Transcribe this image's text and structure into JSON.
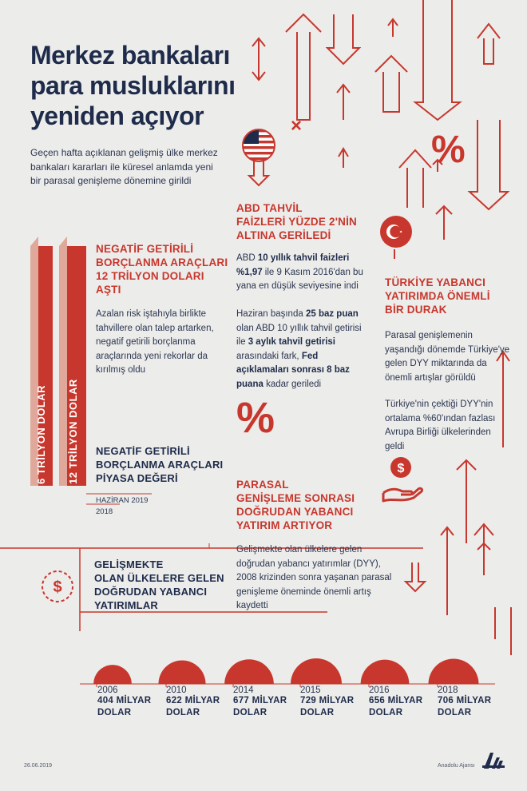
{
  "title": [
    "Merkez bankaları",
    "para musluklarını",
    "yeniden açıyor"
  ],
  "intro": "Geçen hafta açıklanan gelişmiş ülke merkez bankaları kararları ile küresel anlamda yeni bir parasal genişleme dönemine girildi",
  "negative_bonds": {
    "heading": [
      "NEGATİF GETİRİLİ",
      "BORÇLANMA ARAÇLARI",
      "12 TRİLYON DOLARI",
      "AŞTI"
    ],
    "body": "Azalan risk iştahıyla birlikte tahvillere olan talep artarken, negatif getirili borçlanma araçlarında yeni rekorlar da kırılmış oldu",
    "bar_2018_label": "6 TRİLYON DOLAR",
    "bar_2019_label": "12 TRİLYON DOLAR",
    "bar_2018_value": 6,
    "bar_2019_value": 12,
    "market_title": [
      "NEGATİF GETİRİLİ",
      "BORÇLANMA ARAÇLARI",
      "PİYASA DEĞERİ"
    ],
    "date_2019": "HAZİRAN 2019",
    "date_2018": "2018"
  },
  "usa": {
    "heading": [
      "ABD TAHVİL",
      "FAİZLERİ YÜZDE 2'NİN",
      "ALTINA GERİLEDİ"
    ],
    "p1_a": "ABD ",
    "p1_b": "10 yıllık tahvil faizleri %1,97",
    "p1_c": " ile 9 Kasım 2016'dan bu yana en düşük seviyesine indi",
    "p2_a": "Haziran başında ",
    "p2_b": "25 baz puan",
    "p2_c": " olan ABD 10 yıllık tahvil getirisi ile ",
    "p2_d": "3 aylık tahvil getirisi",
    "p2_e": " arasındaki fark, ",
    "p2_f": "Fed açıklamaları sonrası 8 baz puana",
    "p2_g": " kadar geriledi"
  },
  "turkey": {
    "heading": [
      "TÜRKİYE YABANCI",
      "YATIRIMDA ÖNEMLİ",
      "BİR DURAK"
    ],
    "p1": "Parasal genişlemenin yaşandığı dönemde Türkiye'ye gelen DYY miktarında da önemli artışlar görüldü",
    "p2": "Türkiye'nin çektiği DYY'nin ortalama %60'ından fazlası Avrupa Birliği ülkelerinden geldi"
  },
  "fdi": {
    "heading": [
      "PARASAL",
      "GENİŞLEME SONRASI",
      "DOĞRUDAN YABANCI",
      "YATIRIM ARTIYOR"
    ],
    "body": "Gelişmekte olan ülkelere gelen doğrudan yabancı yatırımlar (DYY), 2008 krizinden sonra yaşanan parasal genişleme öneminde önemli artış kaydetti"
  },
  "developing": {
    "heading": [
      "GELİŞMEKTE",
      "OLAN ÜLKELERE GELEN",
      "DOĞRUDAN YABANCI",
      "YATIRIMLAR"
    ]
  },
  "chart_data": {
    "type": "bar",
    "categories": [
      "2006",
      "2010",
      "2014",
      "2015",
      "2016",
      "2018"
    ],
    "values": [
      404,
      622,
      677,
      729,
      656,
      706
    ],
    "labels": [
      "404 MİLYAR DOLAR",
      "622 MİLYAR DOLAR",
      "677 MİLYAR DOLAR",
      "729 MİLYAR DOLAR",
      "656 MİLYAR DOLAR",
      "706 MİLYAR DOLAR"
    ],
    "label_line1": [
      "404 MİLYAR",
      "622 MİLYAR",
      "677 MİLYAR",
      "729 MİLYAR",
      "656 MİLYAR",
      "706 MİLYAR"
    ],
    "label_line2": "DOLAR"
  },
  "percent_sign": "%",
  "multiply_sign": "×",
  "dollar_sign": "$",
  "footer": {
    "date": "26.06.2019",
    "agency": "Anadolu Ajansı"
  },
  "colors": {
    "red": "#c8372d",
    "navy": "#1e2b4a",
    "background": "#ececea",
    "bar_light": "#e0a89b"
  }
}
